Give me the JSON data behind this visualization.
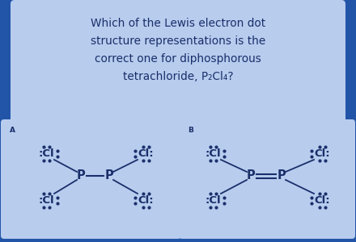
{
  "bg_color": "#2255a8",
  "card_color": "#b8ccee",
  "text_color": "#1a2f6a",
  "title_line1": "Which of the Lewis electron dot",
  "title_line2": "structure representations is the",
  "title_line3": "correct one for diphosphorous",
  "title_line4": "tetrachloride, P₂Cl₄?",
  "label_A": "A",
  "label_B": "B",
  "fig_w": 4.4,
  "fig_h": 3.0,
  "dpi": 100
}
